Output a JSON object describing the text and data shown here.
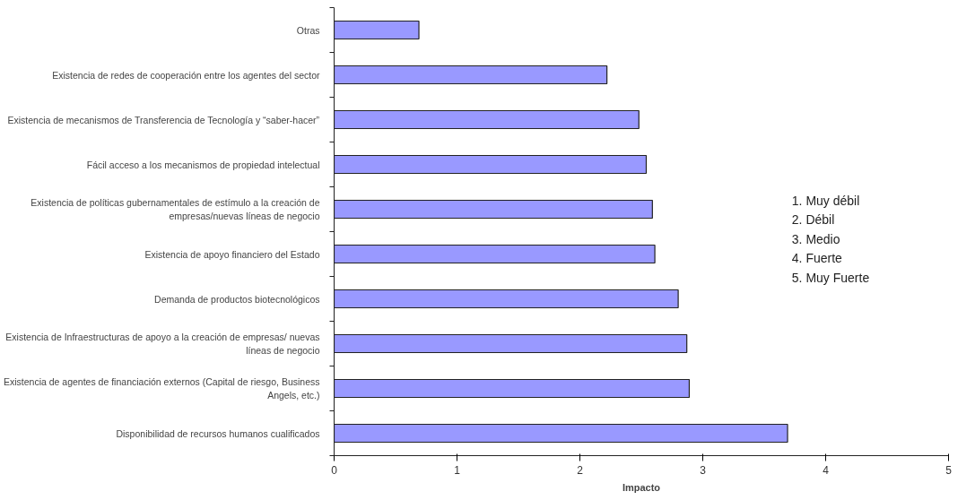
{
  "chart_data": {
    "type": "bar",
    "orientation": "horizontal",
    "xlabel": "Impacto",
    "categories": [
      "Otras",
      "Existencia de redes de cooperación entre los agentes del sector",
      "Existencia de mecanismos de Transferencia de Tecnología y “saber-hacer”",
      "Fácil acceso a los mecanismos de propiedad intelectual",
      "Existencia de políticas gubernamentales de estímulo a la creación de empresas/nuevas líneas de negocio",
      "Existencia de apoyo financiero del Estado",
      "Demanda de productos biotecnológicos",
      "Existencia de Infraestructuras de apoyo a la creación de empresas/ nuevas líneas de negocio",
      "Existencia de agentes de financiación externos (Capital de riesgo, Business Angels, etc.)",
      "Disponibilidad de recursos humanos cualificados"
    ],
    "values": [
      0.69,
      2.22,
      2.48,
      2.54,
      2.59,
      2.61,
      2.8,
      2.87,
      2.89,
      3.69
    ],
    "color": "#9999ff",
    "xlim": [
      0,
      5
    ],
    "xticks": [
      0,
      1,
      2,
      3,
      4,
      5
    ],
    "grid": false,
    "annotations": [
      "1. Muy débil",
      "2. Débil",
      "3. Medio",
      "4. Fuerte",
      "5. Muy Fuerte"
    ]
  }
}
